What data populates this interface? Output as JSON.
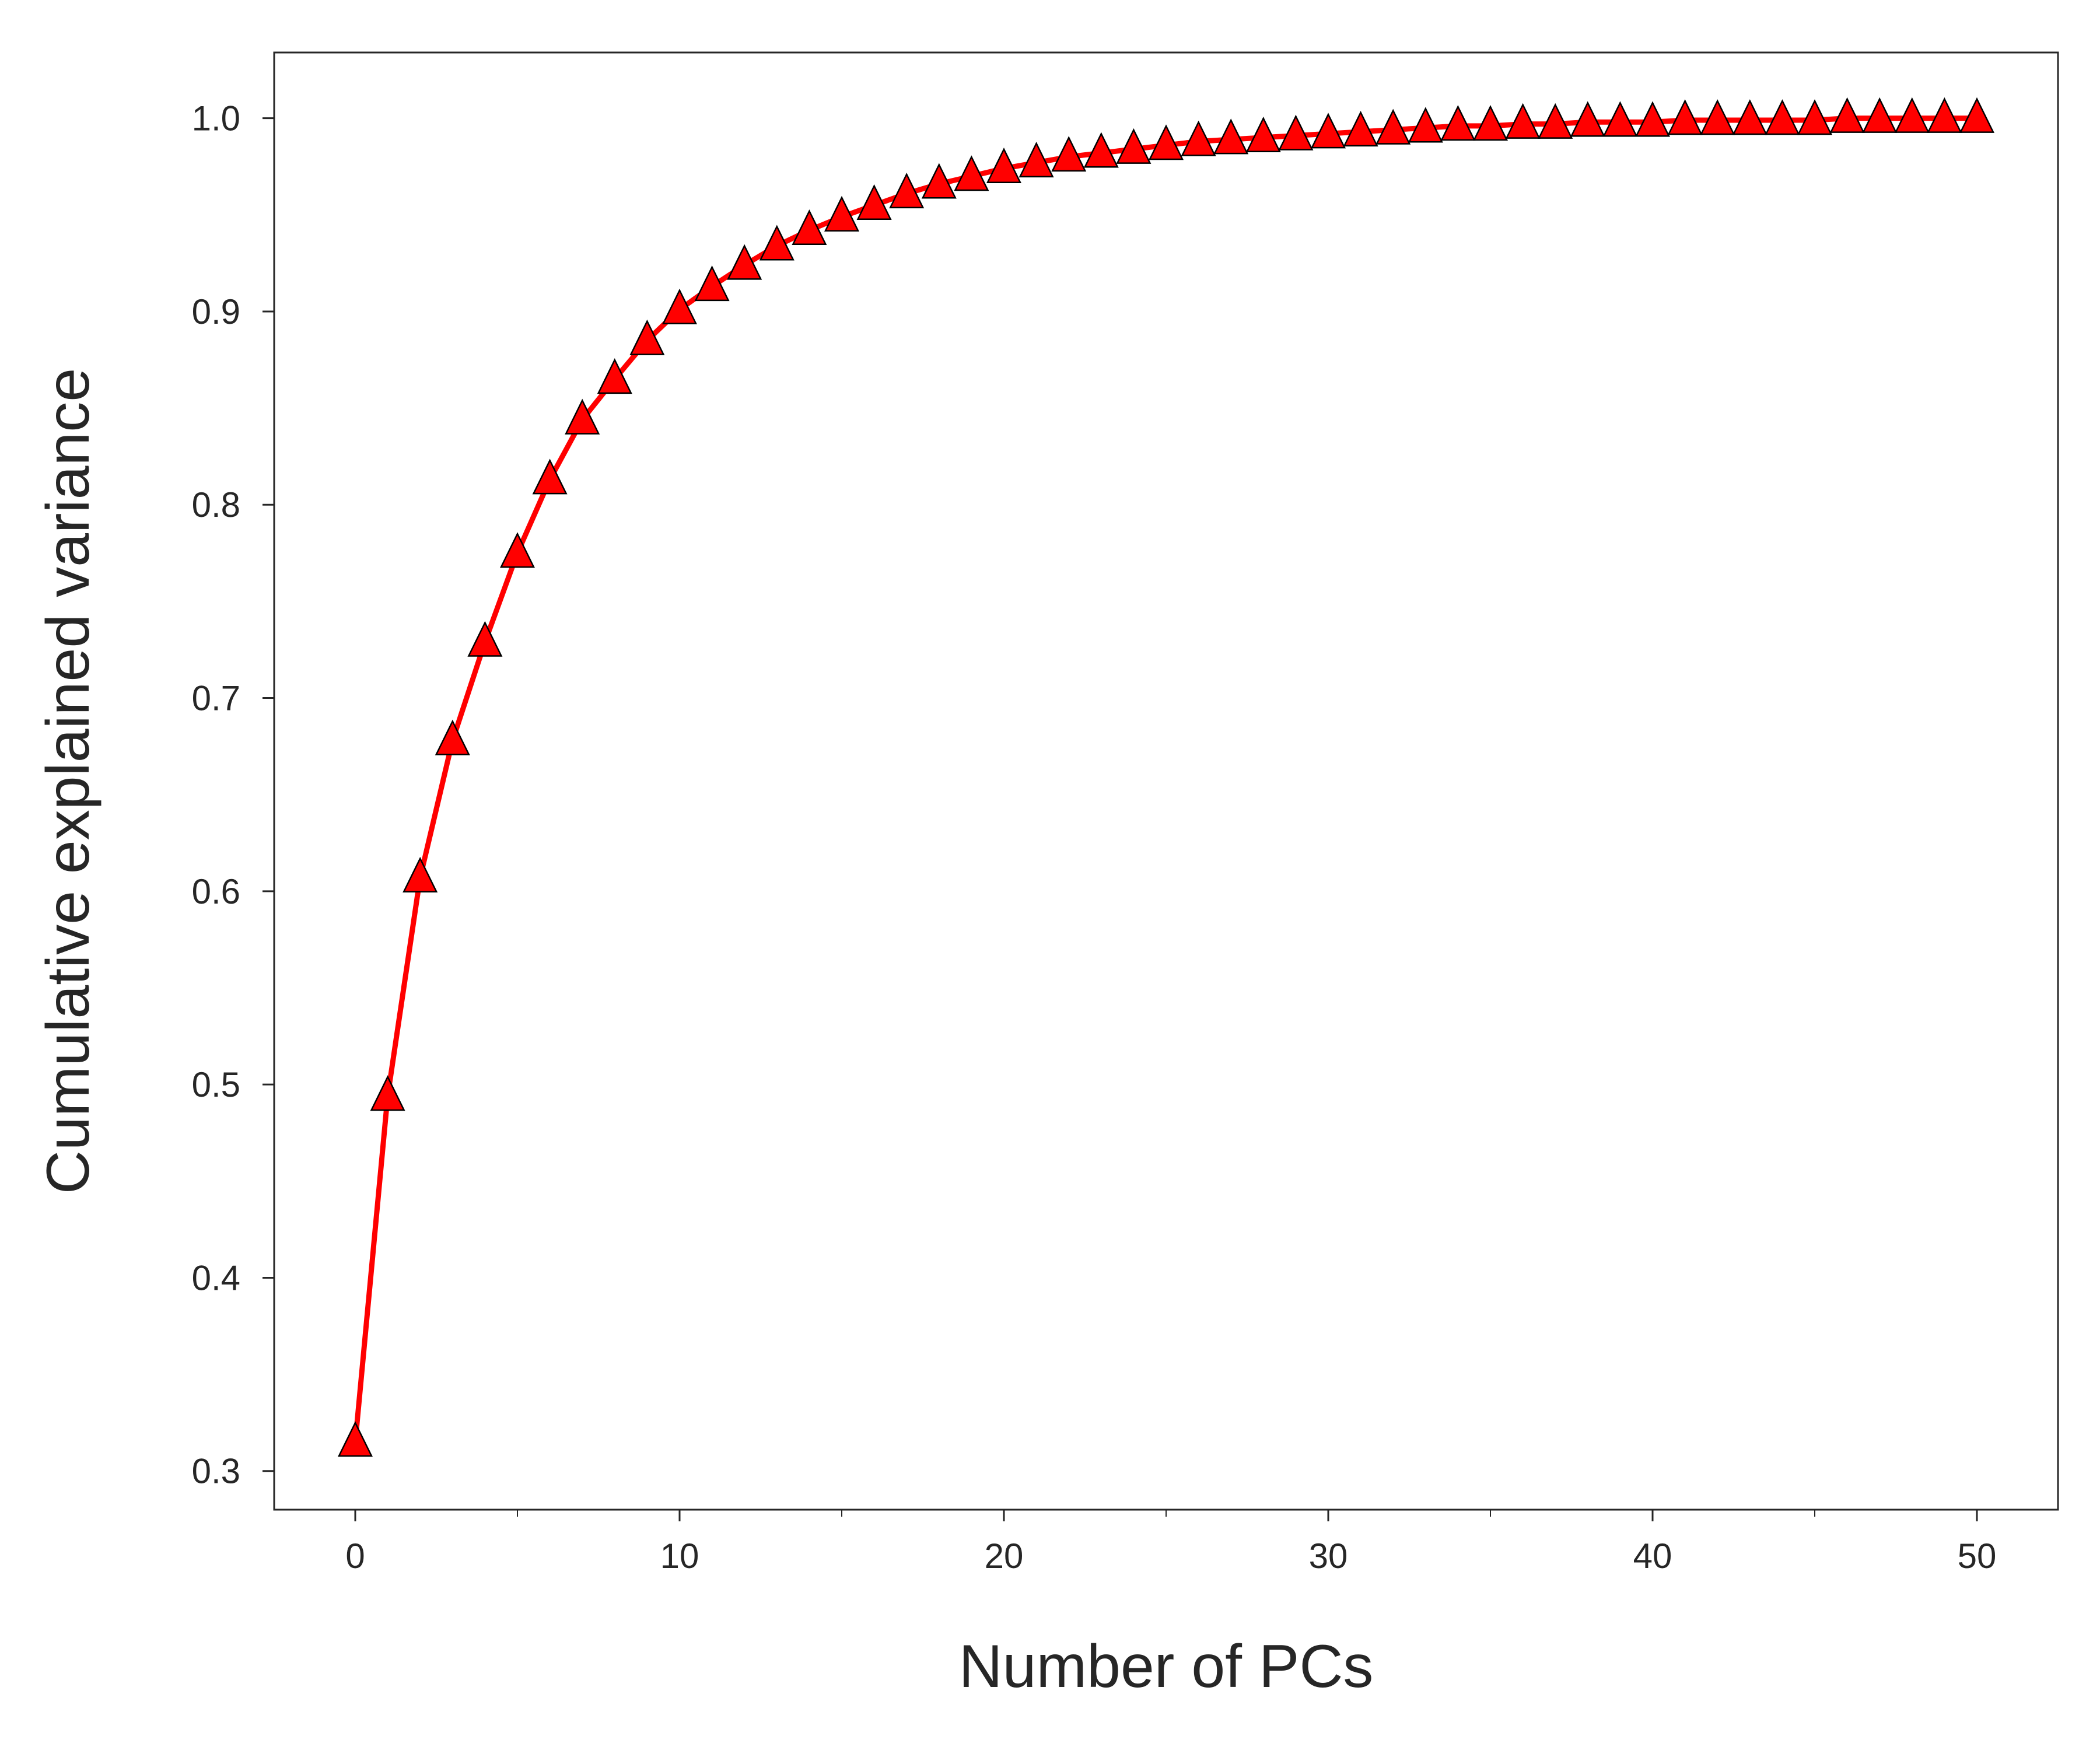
{
  "chart_data": {
    "type": "line",
    "title": "",
    "xlabel": "Number of PCs",
    "ylabel": "Cumulative explained variance",
    "xlim": [
      -2.5,
      52.5
    ],
    "ylim": [
      0.28,
      1.034
    ],
    "x_ticks": [
      0,
      10,
      20,
      30,
      40,
      50
    ],
    "x_tick_labels": [
      "0",
      "10",
      "20",
      "30",
      "40",
      "50"
    ],
    "x_minor_ticks": [
      5,
      15,
      25,
      35,
      45
    ],
    "y_ticks": [
      0.3,
      0.4,
      0.5,
      0.6,
      0.7,
      0.8,
      0.9,
      1.0
    ],
    "y_tick_labels": [
      "0.3",
      "0.4",
      "0.5",
      "0.6",
      "0.7",
      "0.8",
      "0.9",
      "1.0"
    ],
    "grid": false,
    "legend": null,
    "series": [
      {
        "color": "#ff0000",
        "marker": "triangle",
        "marker_edge_color": "#000000",
        "x": [
          0,
          1,
          2,
          3,
          4,
          5,
          6,
          7,
          8,
          9,
          10,
          11,
          12,
          13,
          14,
          15,
          16,
          17,
          18,
          19,
          20,
          21,
          22,
          23,
          24,
          25,
          26,
          27,
          28,
          29,
          30,
          31,
          32,
          33,
          34,
          35,
          36,
          37,
          38,
          39,
          40,
          41,
          42,
          43,
          44,
          45,
          46,
          47,
          48,
          49,
          50
        ],
        "values": [
          0.315,
          0.494,
          0.607,
          0.678,
          0.729,
          0.775,
          0.813,
          0.844,
          0.865,
          0.885,
          0.901,
          0.913,
          0.924,
          0.934,
          0.942,
          0.949,
          0.955,
          0.961,
          0.966,
          0.97,
          0.974,
          0.977,
          0.98,
          0.982,
          0.984,
          0.986,
          0.988,
          0.989,
          0.99,
          0.991,
          0.992,
          0.993,
          0.994,
          0.995,
          0.996,
          0.996,
          0.997,
          0.997,
          0.998,
          0.998,
          0.998,
          0.999,
          0.999,
          0.999,
          0.999,
          0.999,
          1.0,
          1.0,
          1.0,
          1.0,
          1.0
        ]
      }
    ]
  }
}
